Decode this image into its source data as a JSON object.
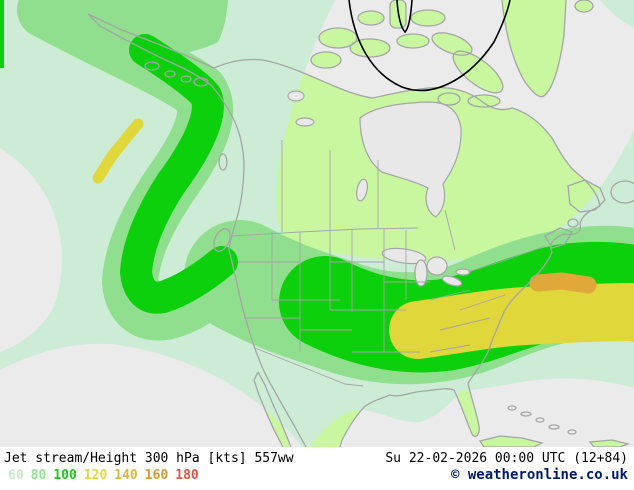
{
  "title": "Jet stream/Height 300 hPa [kts] 557ww",
  "datetime": "Su 22-02-2026 00:00 UTC (12+84)",
  "copyright": "© weatheronline.co.uk",
  "legend": {
    "values": [
      "60",
      "80",
      "100",
      "120",
      "140",
      "160",
      "180"
    ],
    "colors": [
      "#c9ecc9",
      "#96e096",
      "#1ec91e",
      "#e3d83e",
      "#dcb83a",
      "#de9834",
      "#e25548"
    ]
  },
  "map": {
    "region": "North America",
    "field": "Jet stream speed shading with 300 hPa height contour",
    "colors": {
      "ocean": "#ebebeb",
      "land": "#c8f7a0",
      "coast": "#a5a5a5",
      "lake": "#e8e8e8",
      "border": "#a5a5a5",
      "contour": "#000000",
      "band_60": "#ccecd6",
      "band_80": "#8fdf8f",
      "band_100": "#0cd00c",
      "band_120": "#e0d73a",
      "band_140": "#e0a83a"
    }
  }
}
